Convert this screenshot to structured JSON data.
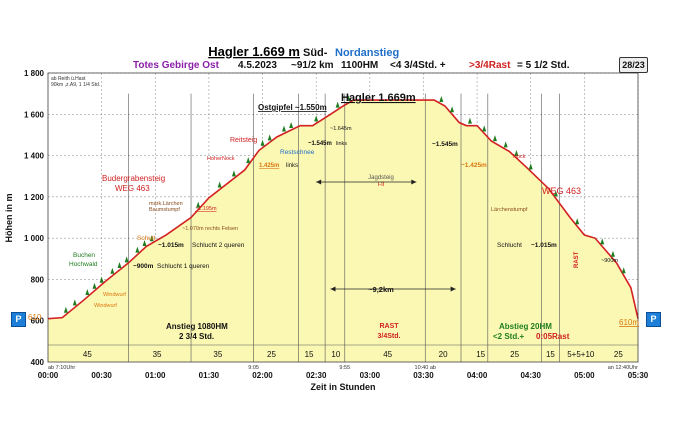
{
  "header": {
    "title": "Hagler 1.669 m",
    "title_dir_1": "Süd-",
    "title_dir_2": "Nordanstieg",
    "range": "Totes Gebirge Ost",
    "date": "4.5.2023",
    "distance": "~91/2 km",
    "elevation_gain": "1100HM",
    "times": "<4 3/4Std. +",
    "rest": ">3/4Rast",
    "total": "= 5 1/2 Std.",
    "page": "28/23"
  },
  "info_box": {
    "line1": "ab Reith ü.Hast",
    "line2": "90km ,z.A9, 1 1/4 Std."
  },
  "colors": {
    "profile_line": "#d32020",
    "fill": "#fbf8b4",
    "title": "#111111",
    "range": "#8a1fa8",
    "nord": "#1f6fc8",
    "rest": "#d02020",
    "green": "#1e7d1e",
    "orange": "#d9760d",
    "badge": "#1e7fd8"
  },
  "chart_data": {
    "type": "area",
    "title": "Hagler 1.669m",
    "xlabel": "Zeit in Stunden",
    "ylabel": "Höhen in m",
    "xlim": [
      0,
      330
    ],
    "ylim": [
      400,
      1800
    ],
    "x_ticks": [
      0,
      30,
      60,
      90,
      120,
      150,
      180,
      210,
      240,
      270,
      300,
      330
    ],
    "x_tick_labels": [
      "00:00",
      "00:30",
      "01:00",
      "01:30",
      "02:00",
      "02:30",
      "03:00",
      "03:30",
      "04:00",
      "04:30",
      "05:00",
      "05:30"
    ],
    "y_ticks": [
      400,
      600,
      800,
      1000,
      1200,
      1400,
      1600,
      1800
    ],
    "y_tick_labels": [
      "400",
      "600",
      "800",
      "1 000",
      "1 200",
      "1 400",
      "1 600",
      "1 800"
    ],
    "grid": true,
    "profile": [
      {
        "x": 0,
        "y": 610
      },
      {
        "x": 8,
        "y": 615
      },
      {
        "x": 20,
        "y": 700
      },
      {
        "x": 32,
        "y": 790
      },
      {
        "x": 45,
        "y": 880
      },
      {
        "x": 55,
        "y": 960
      },
      {
        "x": 66,
        "y": 1015
      },
      {
        "x": 80,
        "y": 1100
      },
      {
        "x": 90,
        "y": 1195
      },
      {
        "x": 110,
        "y": 1330
      },
      {
        "x": 118,
        "y": 1425
      },
      {
        "x": 128,
        "y": 1490
      },
      {
        "x": 141,
        "y": 1545
      },
      {
        "x": 148,
        "y": 1545
      },
      {
        "x": 158,
        "y": 1600
      },
      {
        "x": 166,
        "y": 1645
      },
      {
        "x": 171,
        "y": 1669
      },
      {
        "x": 216,
        "y": 1669
      },
      {
        "x": 222,
        "y": 1640
      },
      {
        "x": 230,
        "y": 1560
      },
      {
        "x": 234,
        "y": 1545
      },
      {
        "x": 240,
        "y": 1545
      },
      {
        "x": 248,
        "y": 1470
      },
      {
        "x": 258,
        "y": 1420
      },
      {
        "x": 268,
        "y": 1340
      },
      {
        "x": 280,
        "y": 1240
      },
      {
        "x": 292,
        "y": 1100
      },
      {
        "x": 300,
        "y": 1015
      },
      {
        "x": 306,
        "y": 1000
      },
      {
        "x": 318,
        "y": 880
      },
      {
        "x": 326,
        "y": 760
      },
      {
        "x": 330,
        "y": 610
      }
    ],
    "segments_bottom": [
      {
        "x_mid": 22,
        "label": "45"
      },
      {
        "x_mid": 61,
        "label": "35"
      },
      {
        "x_mid": 95,
        "label": "35"
      },
      {
        "x_mid": 125,
        "label": "25"
      },
      {
        "x_mid": 146,
        "label": "15"
      },
      {
        "x_mid": 161,
        "label": "10"
      },
      {
        "x_mid": 190,
        "label": "45"
      },
      {
        "x_mid": 221,
        "label": "20"
      },
      {
        "x_mid": 242,
        "label": "15"
      },
      {
        "x_mid": 261,
        "label": "25"
      },
      {
        "x_mid": 281,
        "label": "15"
      },
      {
        "x_mid": 298,
        "label": "5+5+10"
      },
      {
        "x_mid": 319,
        "label": "25"
      }
    ],
    "dividers": [
      45,
      80,
      115,
      140,
      155,
      166,
      211,
      231,
      246,
      276,
      286
    ],
    "small_times": [
      {
        "x": 0,
        "label": "ab 7:10Uhr"
      },
      {
        "x": 115,
        "label": "9:05"
      },
      {
        "x": 166,
        "label": "9:55"
      },
      {
        "x": 211,
        "label": "10:40 ab"
      },
      {
        "x": 330,
        "label": "an 12:40Uhr"
      }
    ]
  },
  "annotations": {
    "ostgipfel": "Ostgipfel ~1.550m",
    "summit": "Hagler 1.669m",
    "reitsteig": "Reitsteig",
    "restschnee": "Restschnee",
    "h1645": "~1.645m",
    "h1545l": "~1.545m",
    "links1": "links",
    "hohernock": "HoherNock",
    "h1425l": "1.425m",
    "links2": "links",
    "budergraben1": "Budergrabensteig",
    "budergraben2": "WEG 463",
    "jagdsteig": "Jagdsteig",
    "jagdsteig_grade": "I-II",
    "marklarchen1": "mark.Lärchen",
    "marklarchen2": "Baumstumpf",
    "h1195": "~1.195m",
    "felsen": "~1.070m rechts Felsen",
    "schutt": "Schutt",
    "h1015l": "~1.015m",
    "schlucht2": "Schlucht 2 queren",
    "buchen1": "Buchen",
    "buchen2": "Hochwald",
    "h900l": "~900m",
    "schlucht1": "Schlucht 1 queren",
    "windwurf1": "Windwurf",
    "windwurf2": "Windwurf",
    "start_alt": "610",
    "end_alt": "610m",
    "distance_arrow": "~9,2km",
    "anstieg1": "Anstieg 1080HM",
    "anstieg2": "2 3/4 Std.",
    "rast1": "RAST",
    "rast2": "3/4Std.",
    "abstieg1": "Abstieg 20HM",
    "abstieg2a": "<2 Std.+",
    "abstieg2b": "0:05Rast",
    "h1545r": "~1.545m",
    "nock": "Nock",
    "h1425r": "~1.425m",
    "larchenstumpf": "Lärchenstumpf",
    "weg463r": "WEG 463",
    "schlucht_r": "Schlucht",
    "h1015r": "~1.015m",
    "rast_vert": "RAST",
    "h900r": "~900m"
  }
}
